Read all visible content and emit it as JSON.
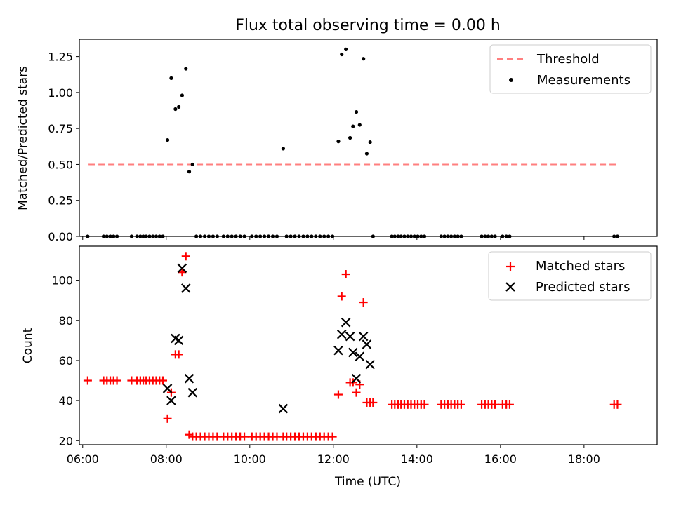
{
  "title": "Flux total observing time = 0.00 h",
  "colors": {
    "threshold": "#ff7f7f",
    "measurements": "#000000",
    "matched": "#ff0000",
    "predicted": "#000000"
  },
  "chart_data": [
    {
      "type": "scatter",
      "title": "Flux total observing time = 0.00 h",
      "ylabel": "Matched/Predicted stars",
      "xlim": [
        5.92,
        19.75
      ],
      "ylim": [
        0.0,
        1.37
      ],
      "yticks": [
        0.0,
        0.25,
        0.5,
        0.75,
        1.0,
        1.25
      ],
      "ytick_labels": [
        "0.00",
        "0.25",
        "0.50",
        "0.75",
        "1.00",
        "1.25"
      ],
      "legend_position": "upper right",
      "legend": [
        "Threshold",
        "Measurements"
      ],
      "threshold": {
        "name": "Threshold",
        "value": 0.5,
        "x_range": [
          6.14,
          18.82
        ],
        "style": "dashed"
      },
      "series": [
        {
          "name": "Measurements",
          "x": [
            6.12,
            6.5,
            6.58,
            6.66,
            6.74,
            6.82,
            7.17,
            7.3,
            7.38,
            7.45,
            7.52,
            7.6,
            7.68,
            7.76,
            7.84,
            7.92,
            8.03,
            8.12,
            8.22,
            8.3,
            8.38,
            8.47,
            8.55,
            8.63,
            8.72,
            8.82,
            8.92,
            9.02,
            9.12,
            9.22,
            9.37,
            9.47,
            9.57,
            9.67,
            9.77,
            9.87,
            10.05,
            10.15,
            10.25,
            10.35,
            10.45,
            10.55,
            10.65,
            10.8,
            10.88,
            10.98,
            11.08,
            11.18,
            11.28,
            11.38,
            11.48,
            11.58,
            11.68,
            11.78,
            11.88,
            11.98,
            12.12,
            12.2,
            12.3,
            12.4,
            12.47,
            12.55,
            12.63,
            12.72,
            12.8,
            12.88,
            12.95,
            13.4,
            13.47,
            13.55,
            13.62,
            13.7,
            13.78,
            13.86,
            13.94,
            14.02,
            14.1,
            14.18,
            14.58,
            14.66,
            14.74,
            14.82,
            14.9,
            14.98,
            15.06,
            15.55,
            15.63,
            15.71,
            15.79,
            15.87,
            16.05,
            16.14,
            16.22,
            18.72,
            18.8
          ],
          "y": [
            0,
            0,
            0,
            0,
            0,
            0,
            0,
            0,
            0,
            0,
            0,
            0,
            0,
            0,
            0,
            0,
            0.67,
            1.1,
            0.885,
            0.9,
            0.98,
            1.165,
            0.45,
            0.5,
            0,
            0,
            0,
            0,
            0,
            0,
            0,
            0,
            0,
            0,
            0,
            0,
            0,
            0,
            0,
            0,
            0,
            0,
            0,
            0.61,
            0,
            0,
            0,
            0,
            0,
            0,
            0,
            0,
            0,
            0,
            0,
            0,
            0.66,
            1.265,
            1.3,
            0.685,
            0.765,
            0.865,
            0.775,
            1.235,
            0.575,
            0.655,
            0,
            0,
            0,
            0,
            0,
            0,
            0,
            0,
            0,
            0,
            0,
            0,
            0,
            0,
            0,
            0,
            0,
            0,
            0,
            0,
            0,
            0,
            0,
            0,
            0,
            0,
            0,
            0,
            0
          ]
        }
      ]
    },
    {
      "type": "scatter",
      "xlabel": "Time (UTC)",
      "ylabel": "Count",
      "xlim": [
        5.92,
        19.75
      ],
      "ylim": [
        18.0,
        117.0
      ],
      "yticks": [
        20,
        40,
        60,
        80,
        100
      ],
      "ytick_labels": [
        "20",
        "40",
        "60",
        "80",
        "100"
      ],
      "xticks": [
        6,
        8,
        10,
        12,
        14,
        16,
        18
      ],
      "xtick_labels": [
        "06:00",
        "08:00",
        "10:00",
        "12:00",
        "14:00",
        "16:00",
        "18:00"
      ],
      "legend_position": "upper right",
      "legend": [
        "Matched stars",
        "Predicted stars"
      ],
      "series": [
        {
          "name": "Matched stars",
          "marker": "+",
          "x": [
            6.12,
            6.5,
            6.58,
            6.66,
            6.74,
            6.82,
            7.17,
            7.3,
            7.38,
            7.45,
            7.52,
            7.6,
            7.68,
            7.76,
            7.84,
            7.92,
            8.03,
            8.12,
            8.22,
            8.3,
            8.38,
            8.47,
            8.55,
            8.63,
            8.72,
            8.82,
            8.92,
            9.02,
            9.12,
            9.22,
            9.37,
            9.47,
            9.57,
            9.67,
            9.77,
            9.87,
            10.05,
            10.15,
            10.25,
            10.35,
            10.45,
            10.55,
            10.65,
            10.8,
            10.88,
            10.98,
            11.08,
            11.18,
            11.28,
            11.38,
            11.48,
            11.58,
            11.68,
            11.78,
            11.88,
            11.98,
            12.12,
            12.2,
            12.3,
            12.4,
            12.47,
            12.55,
            12.63,
            12.72,
            12.8,
            12.88,
            12.95,
            13.4,
            13.47,
            13.55,
            13.62,
            13.7,
            13.78,
            13.86,
            13.94,
            14.02,
            14.1,
            14.18,
            14.58,
            14.66,
            14.74,
            14.82,
            14.9,
            14.98,
            15.06,
            15.55,
            15.63,
            15.71,
            15.79,
            15.87,
            16.05,
            16.14,
            16.22,
            18.72,
            18.8
          ],
          "y": [
            50,
            50,
            50,
            50,
            50,
            50,
            50,
            50,
            50,
            50,
            50,
            50,
            50,
            50,
            50,
            50,
            31,
            44,
            63,
            63,
            104,
            112,
            23,
            22,
            22,
            22,
            22,
            22,
            22,
            22,
            22,
            22,
            22,
            22,
            22,
            22,
            22,
            22,
            22,
            22,
            22,
            22,
            22,
            22,
            22,
            22,
            22,
            22,
            22,
            22,
            22,
            22,
            22,
            22,
            22,
            22,
            43,
            92,
            103,
            49,
            49,
            44,
            48,
            89,
            39,
            39,
            39,
            38,
            38,
            38,
            38,
            38,
            38,
            38,
            38,
            38,
            38,
            38,
            38,
            38,
            38,
            38,
            38,
            38,
            38,
            38,
            38,
            38,
            38,
            38,
            38,
            38,
            38,
            38,
            38
          ]
        },
        {
          "name": "Predicted stars",
          "marker": "x",
          "x": [
            8.03,
            8.12,
            8.22,
            8.3,
            8.38,
            8.47,
            8.55,
            8.63,
            10.8,
            12.12,
            12.2,
            12.3,
            12.4,
            12.47,
            12.55,
            12.63,
            12.72,
            12.8,
            12.88
          ],
          "y": [
            46,
            40,
            71,
            70,
            106,
            96,
            51,
            44,
            36,
            65,
            73,
            79,
            72,
            64,
            51,
            62,
            72,
            68,
            58
          ]
        }
      ]
    }
  ]
}
